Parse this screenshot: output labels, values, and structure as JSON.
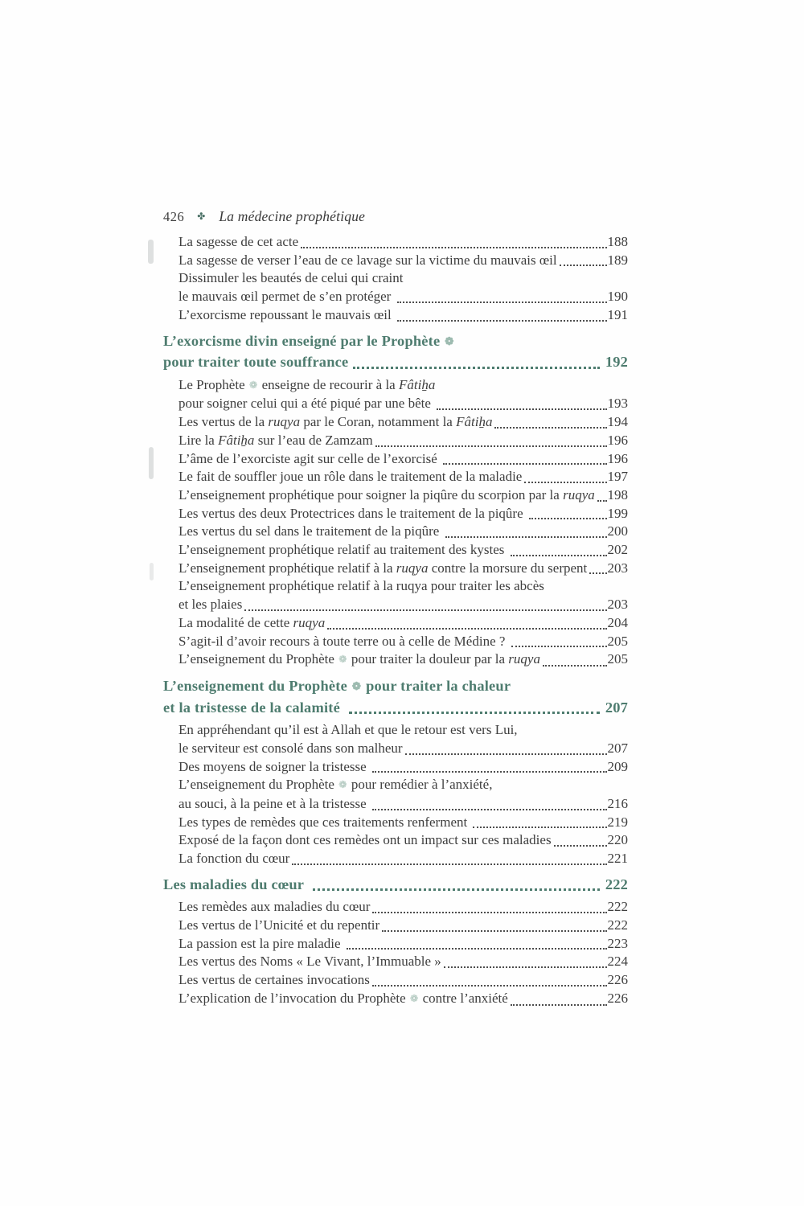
{
  "header": {
    "page_number": "426",
    "ornament_glyph": "✤",
    "book_title": "La médecine prophétique"
  },
  "symbols": {
    "pbuh": "❁"
  },
  "toc": {
    "items": [
      {
        "style": "entry",
        "lines": [
          {
            "segments": [
              {
                "t": "La sagesse de cet acte"
              }
            ],
            "page": "188"
          }
        ]
      },
      {
        "style": "entry",
        "lines": [
          {
            "segments": [
              {
                "t": "La sagesse de verser l’eau de ce lavage sur la victime du mauvais œil"
              }
            ],
            "page": "189"
          }
        ]
      },
      {
        "style": "entry",
        "lines": [
          {
            "segments": [
              {
                "t": "Dissimuler les beautés de celui qui craint"
              }
            ]
          },
          {
            "segments": [
              {
                "t": "le mauvais œil permet de s’en protéger "
              }
            ],
            "page": "190"
          }
        ]
      },
      {
        "style": "entry",
        "lines": [
          {
            "segments": [
              {
                "t": "L’exorcisme repoussant le mauvais œil "
              }
            ],
            "page": "191"
          }
        ]
      },
      {
        "style": "heading",
        "lines": [
          {
            "segments": [
              {
                "t": "L’exorcisme divin enseigné par le Prophète "
              },
              {
                "icon": "pbuh"
              }
            ]
          },
          {
            "segments": [
              {
                "t": "pour traiter toute souffrance"
              }
            ],
            "page": "192"
          }
        ]
      },
      {
        "style": "entry",
        "lines": [
          {
            "segments": [
              {
                "t": "Le Prophète "
              },
              {
                "icon": "pbuh"
              },
              {
                "t": " enseigne de recourir à la "
              },
              {
                "t": "Fâtiẖa",
                "i": true
              }
            ]
          },
          {
            "segments": [
              {
                "t": "pour soigner celui qui a été piqué par une bête "
              }
            ],
            "page": "193"
          }
        ]
      },
      {
        "style": "entry",
        "lines": [
          {
            "segments": [
              {
                "t": "Les vertus de la "
              },
              {
                "t": "ruqya",
                "i": true
              },
              {
                "t": " par le Coran, notamment la "
              },
              {
                "t": "Fâtiẖa",
                "i": true
              }
            ],
            "page": "194"
          }
        ]
      },
      {
        "style": "entry",
        "lines": [
          {
            "segments": [
              {
                "t": "Lire la "
              },
              {
                "t": "Fâtiẖa",
                "i": true
              },
              {
                "t": " sur l’eau de Zamzam"
              }
            ],
            "page": "196"
          }
        ]
      },
      {
        "style": "entry",
        "lines": [
          {
            "segments": [
              {
                "t": "L’âme de l’exorciste agit sur celle de l’exorcisé "
              }
            ],
            "page": "196"
          }
        ]
      },
      {
        "style": "entry",
        "lines": [
          {
            "segments": [
              {
                "t": "Le fait de souffler joue un rôle dans le traitement de la maladie"
              }
            ],
            "page": "197"
          }
        ]
      },
      {
        "style": "entry",
        "lines": [
          {
            "segments": [
              {
                "t": "L’enseignement prophétique pour soigner la piqûre du scorpion par la "
              },
              {
                "t": "ruqya",
                "i": true
              }
            ],
            "page": "198"
          }
        ]
      },
      {
        "style": "entry",
        "lines": [
          {
            "segments": [
              {
                "t": "Les vertus des deux Protectrices dans le traitement de la piqûre "
              }
            ],
            "page": "199"
          }
        ]
      },
      {
        "style": "entry",
        "lines": [
          {
            "segments": [
              {
                "t": "Les vertus du sel dans le traitement de la piqûre "
              }
            ],
            "page": "200"
          }
        ]
      },
      {
        "style": "entry",
        "lines": [
          {
            "segments": [
              {
                "t": "L’enseignement prophétique relatif au traitement des kystes "
              }
            ],
            "page": "202"
          }
        ]
      },
      {
        "style": "entry",
        "lines": [
          {
            "segments": [
              {
                "t": "L’enseignement prophétique relatif à la "
              },
              {
                "t": "ruqya",
                "i": true
              },
              {
                "t": " contre la morsure du serpent"
              }
            ],
            "page": "203"
          }
        ]
      },
      {
        "style": "entry",
        "lines": [
          {
            "segments": [
              {
                "t": "L’enseignement prophétique relatif à la ruqya pour traiter les abcès"
              }
            ]
          },
          {
            "segments": [
              {
                "t": "et les plaies"
              }
            ],
            "page": "203"
          }
        ]
      },
      {
        "style": "entry",
        "lines": [
          {
            "segments": [
              {
                "t": "La modalité de cette "
              },
              {
                "t": "ruqya",
                "i": true
              }
            ],
            "page": "204"
          }
        ]
      },
      {
        "style": "entry",
        "lines": [
          {
            "segments": [
              {
                "t": "S’agit-il d’avoir recours à toute terre ou à celle de Médine ? "
              }
            ],
            "page": "205"
          }
        ]
      },
      {
        "style": "entry",
        "lines": [
          {
            "segments": [
              {
                "t": "L’enseignement du Prophète "
              },
              {
                "icon": "pbuh"
              },
              {
                "t": " pour traiter la douleur par la "
              },
              {
                "t": "ruqya",
                "i": true
              }
            ],
            "page": "205"
          }
        ]
      },
      {
        "style": "heading",
        "lines": [
          {
            "segments": [
              {
                "t": "L’enseignement du Prophète "
              },
              {
                "icon": "pbuh"
              },
              {
                "t": " pour traiter la chaleur"
              }
            ]
          },
          {
            "segments": [
              {
                "t": "et la tristesse de la calamité "
              }
            ],
            "page": "207"
          }
        ]
      },
      {
        "style": "entry",
        "lines": [
          {
            "segments": [
              {
                "t": "En appréhendant qu’il est à Allah et que le retour est vers Lui,"
              }
            ]
          },
          {
            "segments": [
              {
                "t": "le serviteur est consolé dans son malheur"
              }
            ],
            "page": "207"
          }
        ]
      },
      {
        "style": "entry",
        "lines": [
          {
            "segments": [
              {
                "t": "Des moyens de soigner la tristesse "
              }
            ],
            "page": "209"
          }
        ]
      },
      {
        "style": "entry",
        "lines": [
          {
            "segments": [
              {
                "t": "L’enseignement du Prophète "
              },
              {
                "icon": "pbuh"
              },
              {
                "t": " pour remédier à l’anxiété,"
              }
            ]
          },
          {
            "segments": [
              {
                "t": "au souci, à la peine et à la tristesse "
              }
            ],
            "page": "216"
          }
        ]
      },
      {
        "style": "entry",
        "lines": [
          {
            "segments": [
              {
                "t": "Les types de remèdes que ces traitements renferment "
              }
            ],
            "page": "219"
          }
        ]
      },
      {
        "style": "entry",
        "lines": [
          {
            "segments": [
              {
                "t": "Exposé de la façon dont ces remèdes ont un impact sur ces maladies"
              }
            ],
            "page": "220"
          }
        ]
      },
      {
        "style": "entry",
        "lines": [
          {
            "segments": [
              {
                "t": "La fonction du cœur"
              }
            ],
            "page": "221"
          }
        ]
      },
      {
        "style": "heading",
        "lines": [
          {
            "segments": [
              {
                "t": "Les maladies du cœur "
              }
            ],
            "page": "222"
          }
        ]
      },
      {
        "style": "entry",
        "lines": [
          {
            "segments": [
              {
                "t": "Les remèdes aux maladies du cœur"
              }
            ],
            "page": "222"
          }
        ]
      },
      {
        "style": "entry",
        "lines": [
          {
            "segments": [
              {
                "t": "Les vertus de l’Unicité et du repentir"
              }
            ],
            "page": "222"
          }
        ]
      },
      {
        "style": "entry",
        "lines": [
          {
            "segments": [
              {
                "t": "La passion est la pire maladie "
              }
            ],
            "page": "223"
          }
        ]
      },
      {
        "style": "entry",
        "lines": [
          {
            "segments": [
              {
                "t": "Les vertus des Noms « Le Vivant, l’Immuable »"
              }
            ],
            "page": "224"
          }
        ]
      },
      {
        "style": "entry",
        "lines": [
          {
            "segments": [
              {
                "t": "Les vertus de certaines invocations"
              }
            ],
            "page": "226"
          }
        ]
      },
      {
        "style": "entry",
        "lines": [
          {
            "segments": [
              {
                "t": "L’explication de l’invocation du Prophète "
              },
              {
                "icon": "pbuh"
              },
              {
                "t": " contre l’anxiété"
              }
            ],
            "page": "226"
          }
        ]
      }
    ]
  }
}
